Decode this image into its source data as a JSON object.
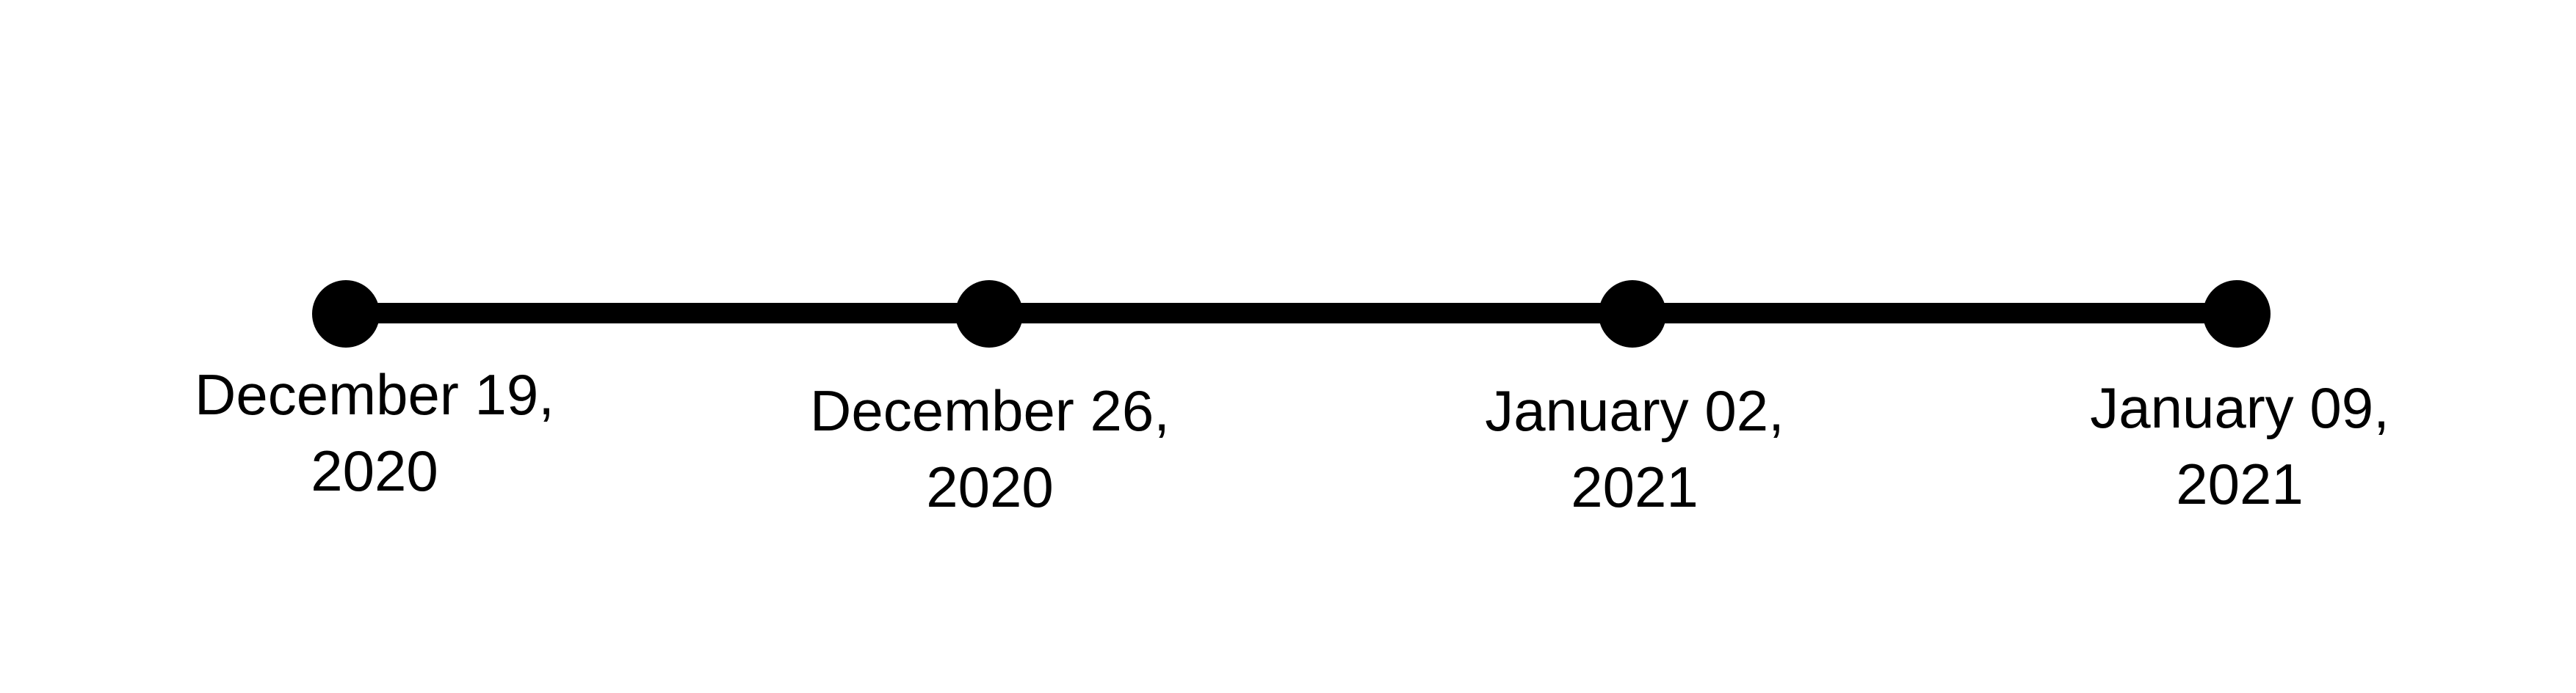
{
  "timeline": {
    "events": [
      {
        "line1": "December 19,",
        "line2": "2020"
      },
      {
        "line1": "December 26,",
        "line2": "2020"
      },
      {
        "line1": "January 02,",
        "line2": "2021"
      },
      {
        "line1": "January 09,",
        "line2": "2021"
      }
    ],
    "colors": {
      "line": "#000000",
      "dot": "#000000",
      "text": "#000000",
      "background": "#ffffff"
    }
  }
}
